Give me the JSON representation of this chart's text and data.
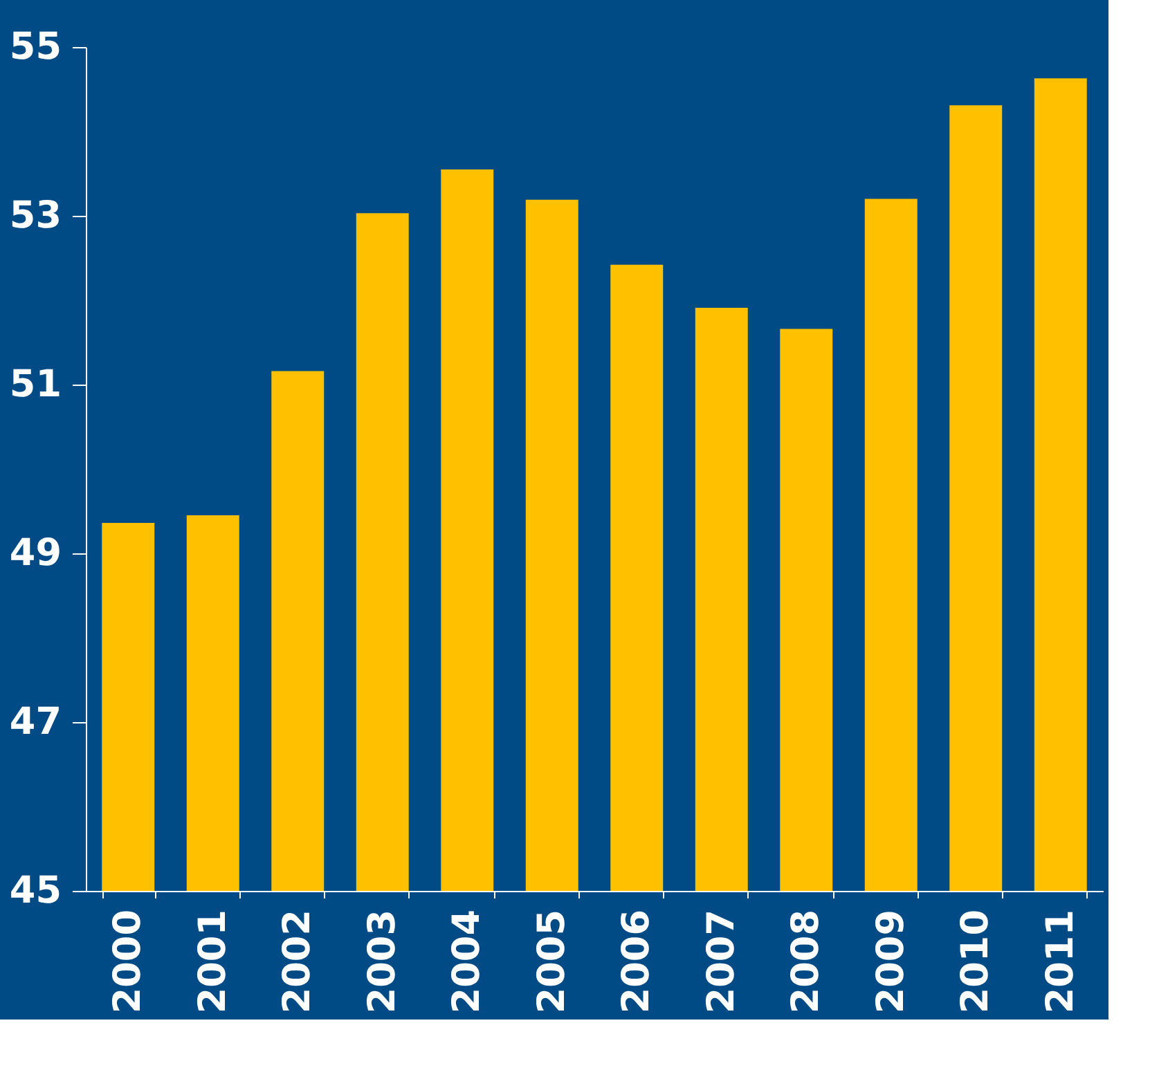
{
  "chart_data": {
    "type": "bar",
    "categories": [
      "2000",
      "2001",
      "2002",
      "2003",
      "2004",
      "2005",
      "2006",
      "2007",
      "2008",
      "2009",
      "2010",
      "2011"
    ],
    "values": [
      49.36,
      49.45,
      51.16,
      53.03,
      53.55,
      53.19,
      52.42,
      51.91,
      51.66,
      53.2,
      54.31,
      54.63
    ],
    "color": "#ffc000",
    "ylim": [
      45,
      55
    ],
    "yticks": [
      45,
      47,
      49,
      51,
      53,
      55
    ],
    "grid": false
  }
}
